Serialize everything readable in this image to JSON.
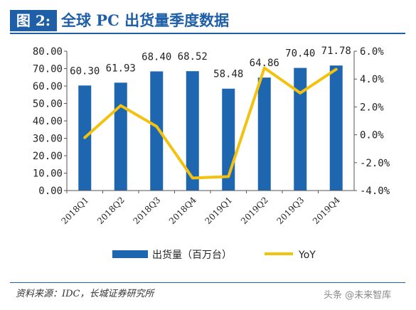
{
  "header": {
    "figure_label": "图 2:",
    "title": "全球 PC 出货量季度数据"
  },
  "source_note": "资料来源：IDC，长城证券研究所",
  "watermark": "头条 @未来智库",
  "colors": {
    "bar": "#1f66b0",
    "line": "#f2c20f",
    "accent": "#1f5fa8"
  },
  "chart_data": {
    "type": "bar",
    "categories": [
      "2018Q1",
      "2018Q2",
      "2018Q3",
      "2018Q4",
      "2019Q1",
      "2019Q2",
      "2019Q3",
      "2019Q4"
    ],
    "series": [
      {
        "name": "出货量（百万台）",
        "type": "bar",
        "axis": "left",
        "values": [
          60.3,
          61.93,
          68.4,
          68.52,
          58.48,
          64.86,
          70.4,
          71.78
        ],
        "labels": [
          "60.30",
          "61.93",
          "68.40",
          "68.52",
          "58.48",
          "64.86",
          "70.40",
          "71.78"
        ]
      },
      {
        "name": "YoY",
        "type": "line",
        "axis": "right",
        "values": [
          -0.2,
          2.1,
          0.6,
          -3.1,
          -3.0,
          4.8,
          3.0,
          4.7
        ]
      }
    ],
    "y_left": {
      "lim": [
        0,
        80
      ],
      "ticks": [
        0,
        10,
        20,
        30,
        40,
        50,
        60,
        70,
        80
      ],
      "tick_labels": [
        "0.00",
        "10.00",
        "20.00",
        "30.00",
        "40.00",
        "50.00",
        "60.00",
        "70.00",
        "80.00"
      ]
    },
    "y_right": {
      "lim": [
        -4,
        6
      ],
      "ticks": [
        -4,
        -2,
        0,
        2,
        4,
        6
      ],
      "tick_labels": [
        "-4.0%",
        "-2.0%",
        "0.0%",
        "2.0%",
        "4.0%",
        "6.0%"
      ]
    },
    "legend_position": "bottom",
    "grid": false
  }
}
